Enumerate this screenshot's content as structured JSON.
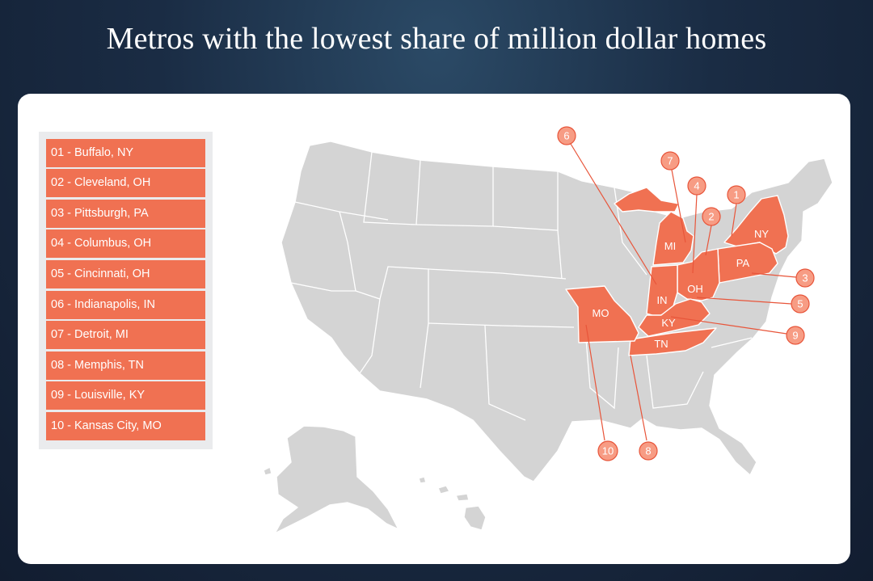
{
  "title": "Metros with the lowest share of million dollar homes",
  "colors": {
    "highlight": "#f07152",
    "base_state": "#d4d4d4",
    "marker": "#f79c84",
    "background": "#1a2c44"
  },
  "legend": [
    {
      "rank": 1,
      "label": "01 - Buffalo, NY"
    },
    {
      "rank": 2,
      "label": "02 - Cleveland, OH"
    },
    {
      "rank": 3,
      "label": "03 - Pittsburgh, PA"
    },
    {
      "rank": 4,
      "label": "04 - Columbus, OH"
    },
    {
      "rank": 5,
      "label": "05 - Cincinnati, OH"
    },
    {
      "rank": 6,
      "label": "06 - Indianapolis, IN"
    },
    {
      "rank": 7,
      "label": "07 - Detroit, MI"
    },
    {
      "rank": 8,
      "label": "08 - Memphis, TN"
    },
    {
      "rank": 9,
      "label": "09 - Louisville, KY"
    },
    {
      "rank": 10,
      "label": "10 - Kansas City, MO"
    }
  ],
  "highlighted_states": [
    {
      "abbr": "NY"
    },
    {
      "abbr": "PA"
    },
    {
      "abbr": "OH"
    },
    {
      "abbr": "MI"
    },
    {
      "abbr": "IN"
    },
    {
      "abbr": "KY"
    },
    {
      "abbr": "TN"
    },
    {
      "abbr": "MO"
    }
  ],
  "markers": [
    {
      "number": "1"
    },
    {
      "number": "2"
    },
    {
      "number": "3"
    },
    {
      "number": "4"
    },
    {
      "number": "5"
    },
    {
      "number": "6"
    },
    {
      "number": "7"
    },
    {
      "number": "8"
    },
    {
      "number": "9"
    },
    {
      "number": "10"
    }
  ]
}
